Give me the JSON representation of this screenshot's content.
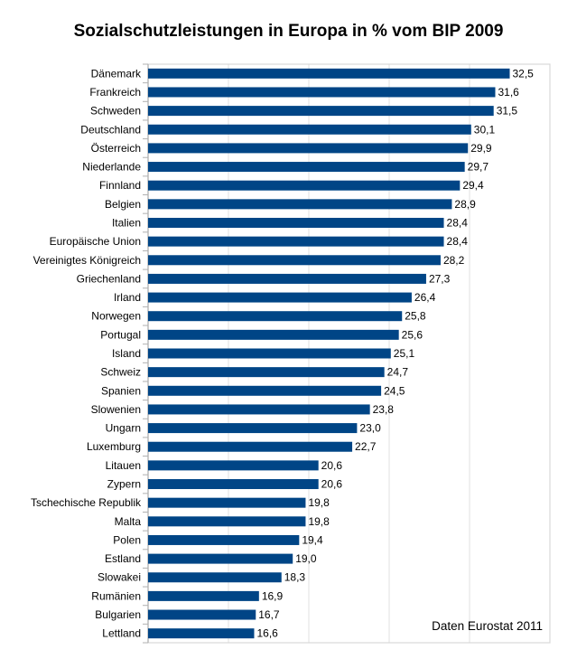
{
  "chart_data": {
    "type": "bar",
    "orientation": "horizontal",
    "title": "Sozialschutzleistungen in Europa in % vom BIP 2009",
    "annotation": "Daten Eurostat 2011",
    "categories": [
      "Dänemark",
      "Frankreich",
      "Schweden",
      "Deutschland",
      "Österreich",
      "Niederlande",
      "Finnland",
      "Belgien",
      "Italien",
      "Europäische Union",
      "Vereinigtes Königreich",
      "Griechenland",
      "Irland",
      "Norwegen",
      "Portugal",
      "Island",
      "Schweiz",
      "Spanien",
      "Slowenien",
      "Ungarn",
      "Luxemburg",
      "Litauen",
      "Zypern",
      "Tschechische Republik",
      "Malta",
      "Polen",
      "Estland",
      "Slowakei",
      "Rumänien",
      "Bulgarien",
      "Lettland"
    ],
    "values": [
      32.5,
      31.6,
      31.5,
      30.1,
      29.9,
      29.7,
      29.4,
      28.9,
      28.4,
      28.4,
      28.2,
      27.3,
      26.4,
      25.8,
      25.6,
      25.1,
      24.7,
      24.5,
      23.8,
      23.0,
      22.7,
      20.6,
      20.6,
      19.8,
      19.8,
      19.4,
      19.0,
      18.3,
      16.9,
      16.7,
      16.6
    ],
    "value_labels": [
      "32,5",
      "31,6",
      "31,5",
      "30,1",
      "29,9",
      "29,7",
      "29,4",
      "28,9",
      "28,4",
      "28,4",
      "28,2",
      "27,3",
      "26,4",
      "25,8",
      "25,6",
      "25,1",
      "24,7",
      "24,5",
      "23,8",
      "23,0",
      "22,7",
      "20,6",
      "20,6",
      "19,8",
      "19,8",
      "19,4",
      "19,0",
      "18,3",
      "16,9",
      "16,7",
      "16,6"
    ],
    "xlim": [
      10,
      35
    ],
    "gridlines": [
      15,
      20,
      25,
      30
    ],
    "grid": true,
    "bar_color": "#004586"
  }
}
